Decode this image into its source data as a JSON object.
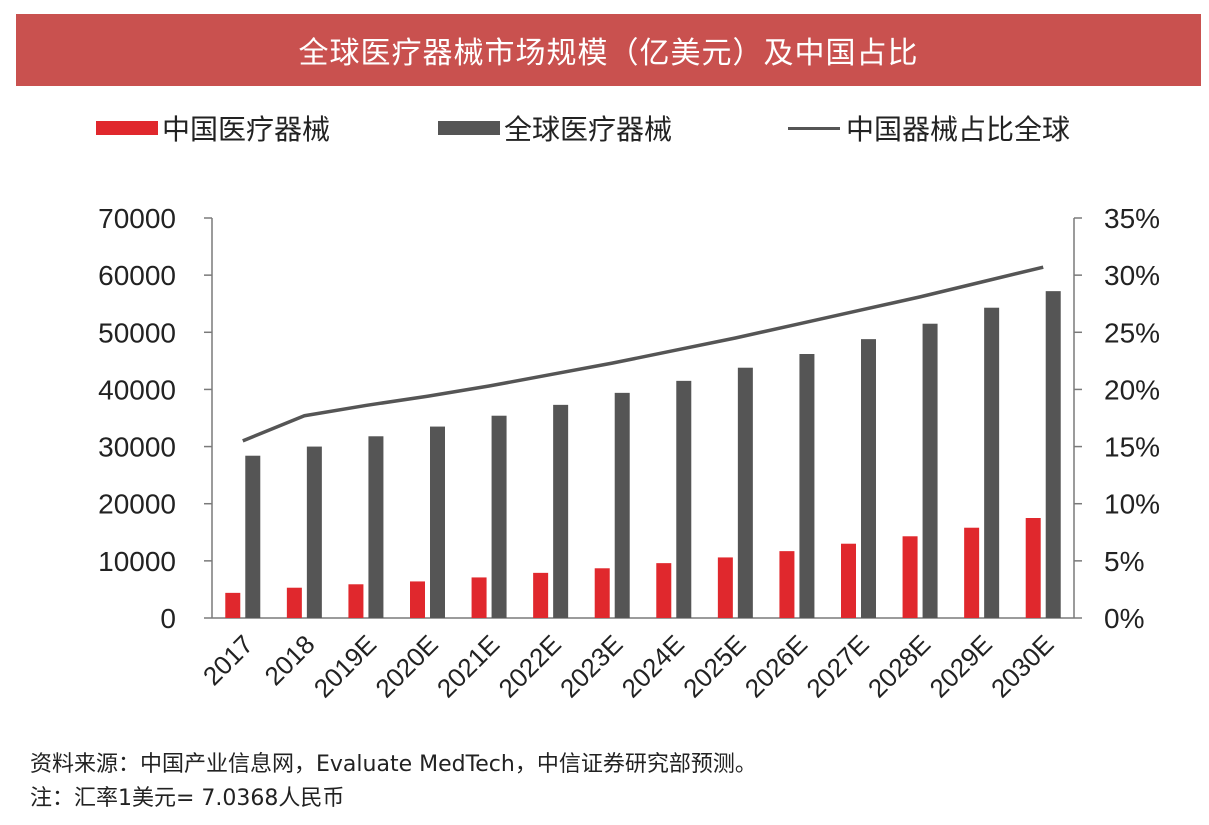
{
  "title": "全球医疗器械市场规模（亿美元）及中国占比",
  "legend": {
    "china": "中国医疗器械",
    "global": "全球医疗器械",
    "share": "中国器械占比全球"
  },
  "colors": {
    "title_bg": "#c9514f",
    "china": "#e0282d",
    "global": "#555555",
    "share": "#555555",
    "axis": "#7a7a7a"
  },
  "chart_data": {
    "type": "bar",
    "title": "全球医疗器械市场规模（亿美元）及中国占比",
    "categories": [
      "2017",
      "2018",
      "2019E",
      "2020E",
      "2021E",
      "2022E",
      "2023E",
      "2024E",
      "2025E",
      "2026E",
      "2027E",
      "2028E",
      "2029E",
      "2030E"
    ],
    "series": [
      {
        "name": "中国医疗器械",
        "type": "bar",
        "axis": "left",
        "values": [
          4400,
          5300,
          5900,
          6400,
          7100,
          7900,
          8700,
          9600,
          10600,
          11700,
          13000,
          14300,
          15800,
          17500
        ]
      },
      {
        "name": "全球医疗器械",
        "type": "bar",
        "axis": "left",
        "values": [
          28400,
          30000,
          31800,
          33500,
          35400,
          37300,
          39400,
          41500,
          43800,
          46200,
          48800,
          51500,
          54300,
          57200
        ]
      },
      {
        "name": "中国器械占比全球",
        "type": "line",
        "axis": "right",
        "values": [
          15.5,
          17.7,
          18.6,
          19.4,
          20.3,
          21.3,
          22.3,
          23.4,
          24.5,
          25.7,
          26.9,
          28.1,
          29.4,
          30.7
        ]
      }
    ],
    "ylim_left": [
      0,
      70000
    ],
    "ylim_right": [
      0,
      35
    ],
    "yticks_left": [
      "70000",
      "60000",
      "50000",
      "40000",
      "30000",
      "20000",
      "10000",
      "0"
    ],
    "yticks_right": [
      "35%",
      "30%",
      "25%",
      "20%",
      "15%",
      "10%",
      "5%",
      "0%"
    ],
    "grid": false,
    "legend_position": "top"
  },
  "source": {
    "line1": "资料来源：中国产业信息网，Evaluate MedTech，中信证券研究部预测。",
    "line2": "注：汇率1美元= 7.0368人民币"
  }
}
